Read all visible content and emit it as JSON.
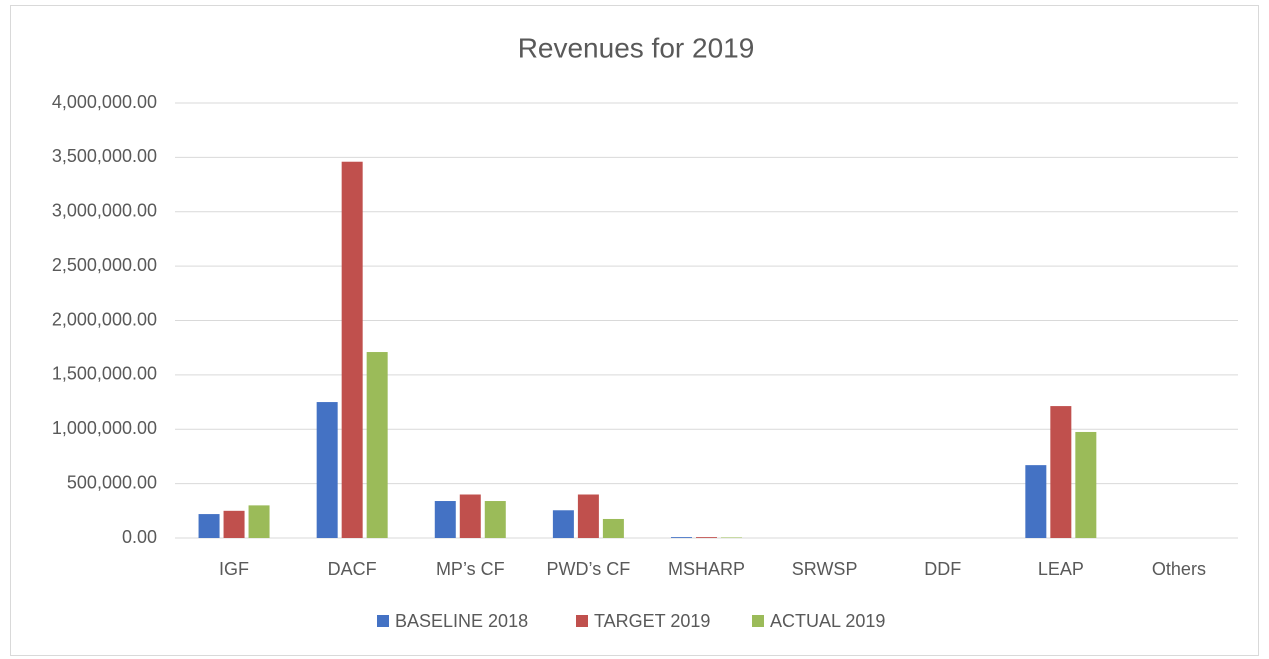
{
  "chart_data": {
    "type": "bar",
    "title": "Revenues for 2019",
    "categories": [
      "IGF",
      "DACF",
      "MP’s CF",
      "PWD’s CF",
      "MSHARP",
      "SRWSP",
      "DDF",
      "LEAP",
      "Others"
    ],
    "series": [
      {
        "name": "BASELINE 2018",
        "color": "#4472c4",
        "values": [
          220000,
          1250000,
          340000,
          255000,
          8000,
          0,
          0,
          670000,
          0
        ]
      },
      {
        "name": "TARGET 2019",
        "color": "#c0504d",
        "values": [
          250000,
          3460000,
          400000,
          400000,
          8000,
          0,
          0,
          1213000,
          0
        ]
      },
      {
        "name": "ACTUAL 2019",
        "color": "#9bbb59",
        "values": [
          300000,
          1710000,
          340000,
          175000,
          5000,
          0,
          0,
          975000,
          0
        ]
      }
    ],
    "ylim": [
      0,
      4000000
    ],
    "yticks": [
      {
        "value": 0,
        "label": "0.00"
      },
      {
        "value": 500000,
        "label": "500,000.00"
      },
      {
        "value": 1000000,
        "label": "1,000,000.00"
      },
      {
        "value": 1500000,
        "label": "1,500,000.00"
      },
      {
        "value": 2000000,
        "label": "2,000,000.00"
      },
      {
        "value": 2500000,
        "label": "2,500,000.00"
      },
      {
        "value": 3000000,
        "label": "3,000,000.00"
      },
      {
        "value": 3500000,
        "label": "3,500,000.00"
      },
      {
        "value": 4000000,
        "label": "4,000,000.00"
      }
    ],
    "grid": true,
    "legend": "bottom"
  }
}
